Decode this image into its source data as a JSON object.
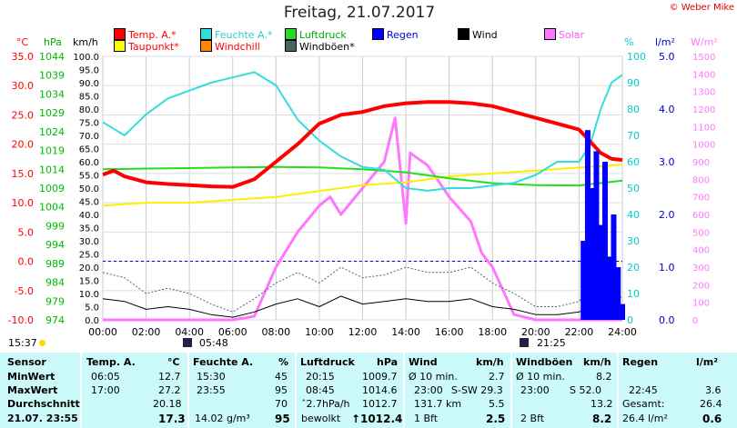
{
  "title": "Freitag, 21.07.2017",
  "copyright": "© Weber Mike",
  "legend": [
    {
      "label": "Temp. A.*",
      "color": "#ff0000"
    },
    {
      "label": "Feuchte A.*",
      "color": "#33dddd"
    },
    {
      "label": "Luftdruck",
      "color": "#22dd22"
    },
    {
      "label": "Regen",
      "color": "#0000ff"
    },
    {
      "label": "Wind",
      "color": "#000000"
    },
    {
      "label": "Solar",
      "color": "#ff77ff"
    },
    {
      "label": "Taupunkt*",
      "color": "#ffff00"
    },
    {
      "label": "Windchill",
      "color": "#ff8800"
    },
    {
      "label": "Windböen*",
      "color": "#446666"
    }
  ],
  "units": {
    "temp": "°C",
    "pressure": "hPa",
    "wind": "km/h",
    "humidity": "%",
    "rain": "l/m²",
    "solar": "W/m²"
  },
  "chart_data": {
    "type": "line",
    "x_ticks": [
      "00:00",
      "02:00",
      "04:00",
      "06:00",
      "08:00",
      "10:00",
      "12:00",
      "14:00",
      "16:00",
      "18:00",
      "20:00",
      "22:00",
      "24:00"
    ],
    "axes": {
      "temp": {
        "ticks": [
          "35.0",
          "30.0",
          "25.0",
          "20.0",
          "15.0",
          "10.0",
          "5.0",
          "0.0",
          "-5.0",
          "-10.0"
        ],
        "ylim": [
          -10,
          35
        ],
        "color": "#ff0000"
      },
      "pressure": {
        "ticks": [
          "1044",
          "1039",
          "1034",
          "1029",
          "1024",
          "1019",
          "1014",
          "1009",
          "1004",
          "999",
          "994",
          "989",
          "984",
          "979",
          "974"
        ],
        "ylim": [
          974,
          1044
        ],
        "color": "#00bb00"
      },
      "wind": {
        "ticks": [
          "100.0",
          "95.0",
          "90.0",
          "85.0",
          "80.0",
          "75.0",
          "70.0",
          "65.0",
          "60.0",
          "55.0",
          "50.0",
          "45.0",
          "40.0",
          "35.0",
          "30.0",
          "25.0",
          "20.0",
          "15.0",
          "10.0",
          "5.0",
          "0.0"
        ],
        "ylim": [
          0,
          100
        ],
        "color": "#000000"
      },
      "humidity": {
        "ticks": [
          "100",
          "90",
          "80",
          "70",
          "60",
          "50",
          "40",
          "30",
          "20",
          "10",
          "0"
        ],
        "ylim": [
          0,
          100
        ],
        "color": "#00cccc"
      },
      "rain": {
        "ticks": [
          "5.0",
          "4.0",
          "3.0",
          "2.0",
          "1.0",
          "0.0"
        ],
        "ylim": [
          0,
          5
        ],
        "color": "#0000cc"
      },
      "solar": {
        "ticks": [
          "1500",
          "1400",
          "1300",
          "1200",
          "1100",
          "1000",
          "900",
          "800",
          "700",
          "600",
          "500",
          "400",
          "300",
          "200",
          "100",
          "0"
        ],
        "ylim": [
          0,
          1500
        ],
        "color": "#ff77ff"
      }
    },
    "series": [
      {
        "name": "Temp. A.*",
        "axis": "temp",
        "x": [
          0,
          0.5,
          1,
          1.5,
          2,
          3,
          4,
          5,
          6,
          7,
          8,
          9,
          10,
          11,
          12,
          13,
          14,
          15,
          16,
          17,
          18,
          19,
          20,
          21,
          22,
          22.5,
          23,
          23.5,
          24
        ],
        "y": [
          14.8,
          15.5,
          14.5,
          14.0,
          13.5,
          13.2,
          13.0,
          12.8,
          12.7,
          14.0,
          17.0,
          20.0,
          23.5,
          25.0,
          25.5,
          26.5,
          27.0,
          27.2,
          27.2,
          27.0,
          26.5,
          25.5,
          24.5,
          23.5,
          22.5,
          20.5,
          18.5,
          17.5,
          17.3
        ]
      },
      {
        "name": "Feuchte A.*",
        "axis": "humidity",
        "x": [
          0,
          1,
          2,
          3,
          4,
          5,
          6,
          7,
          8,
          9,
          10,
          11,
          12,
          13,
          14,
          15,
          16,
          17,
          18,
          19,
          20,
          21,
          22,
          22.5,
          23,
          23.5,
          24
        ],
        "y": [
          75,
          70,
          78,
          84,
          87,
          90,
          92,
          94,
          89,
          76,
          68,
          62,
          58,
          57,
          50,
          49,
          50,
          50,
          51,
          52,
          55,
          60,
          60,
          66,
          80,
          90,
          93
        ]
      },
      {
        "name": "Luftdruck",
        "axis": "pressure",
        "x": [
          0,
          2,
          4,
          6,
          8,
          10,
          12,
          14,
          16,
          18,
          20,
          22,
          24
        ],
        "y": [
          1014.0,
          1014.2,
          1014.3,
          1014.5,
          1014.6,
          1014.5,
          1014.0,
          1013.2,
          1011.6,
          1010.3,
          1009.8,
          1009.7,
          1011.0
        ]
      },
      {
        "name": "Taupunkt*",
        "axis": "temp",
        "x": [
          0,
          2,
          4,
          6,
          8,
          10,
          12,
          14,
          16,
          18,
          20,
          22,
          24
        ],
        "y": [
          9.5,
          10.0,
          10.0,
          10.5,
          11.0,
          12.0,
          13.0,
          13.5,
          14.5,
          15.0,
          15.5,
          16.0,
          16.5
        ]
      },
      {
        "name": "Wind",
        "axis": "wind",
        "x": [
          0,
          1,
          2,
          3,
          4,
          5,
          6,
          7,
          8,
          9,
          10,
          11,
          12,
          13,
          14,
          15,
          16,
          17,
          18,
          19,
          20,
          21,
          22,
          23,
          24
        ],
        "y": [
          8,
          7,
          4,
          5,
          4,
          2,
          1,
          3,
          6,
          8,
          5,
          9,
          6,
          7,
          8,
          7,
          7,
          8,
          5,
          4,
          2,
          2,
          3,
          6,
          4
        ]
      },
      {
        "name": "Windböen*",
        "axis": "wind",
        "x": [
          0,
          1,
          2,
          3,
          4,
          5,
          6,
          7,
          8,
          9,
          10,
          11,
          12,
          13,
          14,
          15,
          16,
          17,
          18,
          19,
          20,
          21,
          22,
          23,
          24
        ],
        "y": [
          18,
          16,
          10,
          12,
          10,
          6,
          3,
          8,
          14,
          18,
          14,
          20,
          16,
          17,
          20,
          18,
          18,
          20,
          14,
          10,
          5,
          5,
          7,
          16,
          8
        ]
      },
      {
        "name": "Solar",
        "axis": "solar",
        "x": [
          0,
          6,
          7,
          8,
          9,
          10,
          10.5,
          11,
          12,
          13,
          13.5,
          14,
          14.2,
          15,
          16,
          17,
          17.5,
          18,
          19,
          20,
          24
        ],
        "y": [
          0,
          0,
          20,
          300,
          500,
          650,
          700,
          600,
          750,
          900,
          1150,
          550,
          950,
          880,
          700,
          560,
          380,
          300,
          30,
          0,
          0
        ]
      },
      {
        "name": "Regen",
        "axis": "rain",
        "x": [
          22.2,
          22.4,
          22.6,
          22.8,
          23,
          23.2,
          23.4,
          23.6,
          23.8,
          24
        ],
        "y": [
          1.5,
          3.6,
          2.5,
          3.2,
          1.8,
          3.0,
          1.2,
          2.0,
          1.0,
          0.3
        ]
      }
    ]
  },
  "sun": {
    "rise_label": "05:48",
    "set_label": "21:25",
    "time_left": "15:37"
  },
  "table": {
    "headers": [
      "Sensor",
      "Temp. A.",
      "°C",
      "Feuchte A.",
      "%",
      "Luftdruck",
      "hPa",
      "Wind",
      "km/h",
      "Windböen",
      "km/h",
      "Regen",
      "l/m²"
    ],
    "rows": [
      {
        "label": "MinWert",
        "t_time": "06:05",
        "t_val": "12.7",
        "h_time": "15:30",
        "h_val": "45",
        "p_time": "20:15",
        "p_val": "1009.7",
        "w_desc": "Ø 10 min.",
        "w_val": "2.7",
        "g_desc": "Ø 10 min.",
        "g_val": "8.2",
        "r_desc": "",
        "r_val": ""
      },
      {
        "label": "MaxWert",
        "t_time": "17:00",
        "t_val": "27.2",
        "h_time": "23:55",
        "h_val": "95",
        "p_time": "08:45",
        "p_val": "1014.6",
        "w_desc": "23:00",
        "w_dir": "S-SW 29.3",
        "g_desc": "23:00",
        "g_dir": "S 52.0",
        "r_desc": "22:45",
        "r_val": "3.6"
      },
      {
        "label": "Durchschnitt",
        "t_time": "",
        "t_val": "20.18",
        "h_time": "",
        "h_val": "70",
        "p_time": "ˆ2.7hPa/h",
        "p_val": "1012.7",
        "w_desc": "131.7 km",
        "w_val": "5.5",
        "g_desc": "",
        "g_val": "13.2",
        "r_desc": "Gesamt:",
        "r_val": "26.4"
      },
      {
        "label": "21.07. 23:55",
        "t_time": "",
        "t_val": "17.3",
        "h_time": "14.02 g/m³",
        "h_val": "95",
        "p_time": "bewolkt",
        "p_val": "↑1012.4",
        "w_desc": "1 Bft",
        "w_val": "2.5",
        "g_desc": "2 Bft",
        "g_val": "8.2",
        "r_desc": "26.4 l/m²",
        "r_val": "0.6"
      }
    ]
  }
}
